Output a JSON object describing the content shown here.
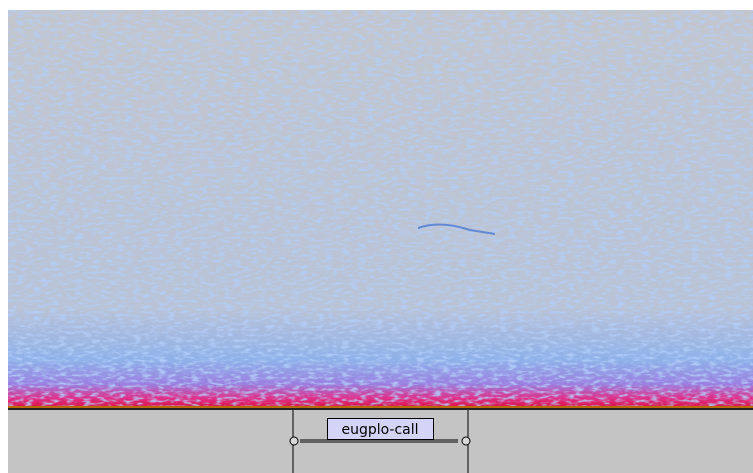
{
  "label_track": {
    "labels": [
      {
        "text": "eugplo-call"
      }
    ]
  }
}
